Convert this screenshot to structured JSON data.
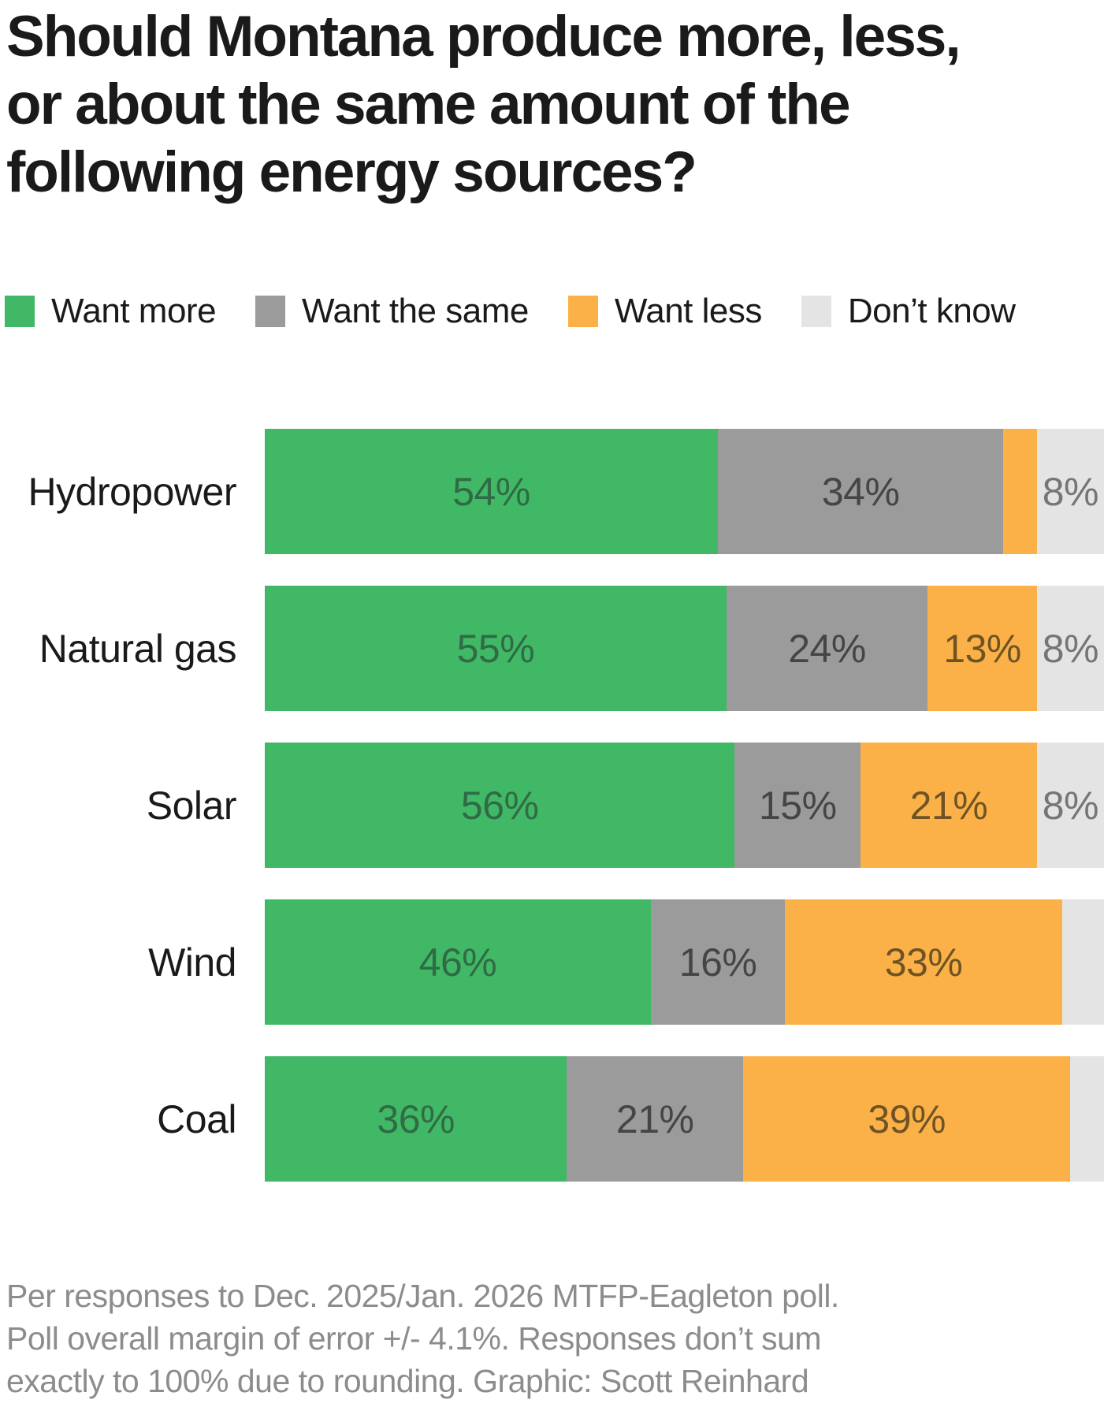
{
  "page": {
    "title": "Should Montana produce more, less, or about the same amount of the following energy sources?",
    "footnote": "Per responses to Dec. 2025/Jan. 2026 MTFP-Eagleton poll. Poll overall margin of error +/- 4.1%. Responses don’t sum exactly to 100% due to rounding. Graphic: Scott Reinhard"
  },
  "legend": [
    {
      "key": "want_more",
      "label": "Want more"
    },
    {
      "key": "want_same",
      "label": "Want the same"
    },
    {
      "key": "want_less",
      "label": "Want less"
    },
    {
      "key": "dont_know",
      "label": "Don’t know"
    }
  ],
  "chart_data": {
    "type": "bar",
    "orientation": "horizontal",
    "stacked": true,
    "value_unit": "%",
    "xlim": [
      0,
      100
    ],
    "categories": [
      "Hydropower",
      "Natural gas",
      "Solar",
      "Wind",
      "Coal"
    ],
    "series": [
      {
        "name": "Want more",
        "values": [
          54,
          55,
          56,
          46,
          36
        ]
      },
      {
        "name": "Want the same",
        "values": [
          34,
          24,
          15,
          16,
          21
        ]
      },
      {
        "name": "Want less",
        "values": [
          4,
          13,
          21,
          33,
          39
        ]
      },
      {
        "name": "Don’t know",
        "values": [
          8,
          8,
          8,
          5,
          4
        ]
      }
    ],
    "unlabeled_segments_estimated_from_pixels": true,
    "colors": {
      "want_more": "#41b866",
      "want_same": "#9b9b9b",
      "want_less": "#fcb148",
      "dont_know": "#e4e4e4"
    },
    "label_colors": {
      "want_more": "#2f6b45",
      "want_same": "#454545",
      "want_less": "#6e5425",
      "dont_know": "#757575"
    },
    "rows": [
      {
        "category": "Hydropower",
        "segments": [
          {
            "key": "want_more",
            "value": 54,
            "label": "54%"
          },
          {
            "key": "want_same",
            "value": 34,
            "label": "34%"
          },
          {
            "key": "want_less",
            "value": 4,
            "label": ""
          },
          {
            "key": "dont_know",
            "value": 8,
            "label": "8%"
          }
        ]
      },
      {
        "category": "Natural gas",
        "segments": [
          {
            "key": "want_more",
            "value": 55,
            "label": "55%"
          },
          {
            "key": "want_same",
            "value": 24,
            "label": "24%"
          },
          {
            "key": "want_less",
            "value": 13,
            "label": "13%"
          },
          {
            "key": "dont_know",
            "value": 8,
            "label": "8%"
          }
        ]
      },
      {
        "category": "Solar",
        "segments": [
          {
            "key": "want_more",
            "value": 56,
            "label": "56%"
          },
          {
            "key": "want_same",
            "value": 15,
            "label": "15%"
          },
          {
            "key": "want_less",
            "value": 21,
            "label": "21%"
          },
          {
            "key": "dont_know",
            "value": 8,
            "label": "8%"
          }
        ]
      },
      {
        "category": "Wind",
        "segments": [
          {
            "key": "want_more",
            "value": 46,
            "label": "46%"
          },
          {
            "key": "want_same",
            "value": 16,
            "label": "16%"
          },
          {
            "key": "want_less",
            "value": 33,
            "label": "33%"
          },
          {
            "key": "dont_know",
            "value": 5,
            "label": ""
          }
        ]
      },
      {
        "category": "Coal",
        "segments": [
          {
            "key": "want_more",
            "value": 36,
            "label": "36%"
          },
          {
            "key": "want_same",
            "value": 21,
            "label": "21%"
          },
          {
            "key": "want_less",
            "value": 39,
            "label": "39%"
          },
          {
            "key": "dont_know",
            "value": 4,
            "label": ""
          }
        ]
      }
    ]
  }
}
